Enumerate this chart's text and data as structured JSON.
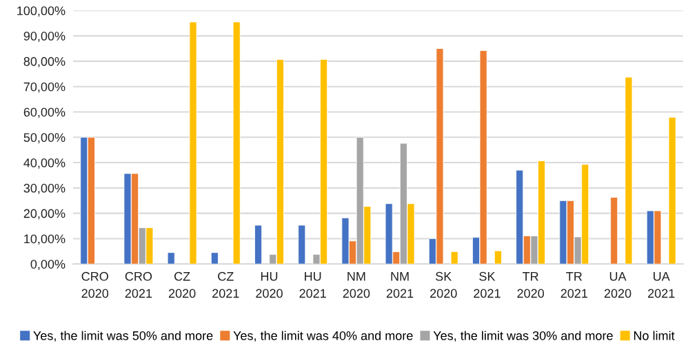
{
  "chart_data": {
    "type": "bar",
    "categories": [
      "CRO\n2020",
      "CRO\n2021",
      "CZ\n2020",
      "CZ\n2021",
      "HU\n2020",
      "HU\n2021",
      "NM\n2020",
      "NM\n2021",
      "SK\n2020",
      "SK\n2021",
      "TR\n2020",
      "TR\n2021",
      "UA\n2020",
      "UA\n2021"
    ],
    "series": [
      {
        "name": "Yes, the limit was 50% and more",
        "color": "#4472c4",
        "values": [
          50,
          35.7,
          4.5,
          4.5,
          15.3,
          15.3,
          18.2,
          23.8,
          10.0,
          10.5,
          37.0,
          25.0,
          null,
          21.0
        ]
      },
      {
        "name": "Yes, the limit was 40% and more",
        "color": "#ed7d31",
        "values": [
          50,
          35.7,
          null,
          null,
          null,
          null,
          9.1,
          4.8,
          85.0,
          84.2,
          11.1,
          25.0,
          26.3,
          21.0
        ]
      },
      {
        "name": "Yes, the limit was 30% and more",
        "color": "#a5a5a5",
        "values": [
          null,
          14.3,
          null,
          null,
          3.8,
          3.8,
          50.0,
          47.6,
          null,
          null,
          11.1,
          10.7,
          null,
          null
        ]
      },
      {
        "name": "No limit",
        "color": "#ffc000",
        "values": [
          null,
          14.3,
          95.5,
          95.5,
          80.7,
          80.7,
          22.7,
          23.8,
          4.9,
          5.2,
          40.7,
          39.3,
          73.7,
          57.9
        ]
      }
    ],
    "ylim": [
      0,
      100
    ],
    "yticks": [
      {
        "value": 0,
        "label": "0,00%"
      },
      {
        "value": 10,
        "label": "10,00%"
      },
      {
        "value": 20,
        "label": "20,00%"
      },
      {
        "value": 30,
        "label": "30,00%"
      },
      {
        "value": 40,
        "label": "40,00%"
      },
      {
        "value": 50,
        "label": "50,00%"
      },
      {
        "value": 60,
        "label": "60,00%"
      },
      {
        "value": 70,
        "label": "70,00%"
      },
      {
        "value": 80,
        "label": "80,00%"
      },
      {
        "value": 90,
        "label": "90,00%"
      },
      {
        "value": 100,
        "label": "100,00%"
      }
    ],
    "grid": "y",
    "legend": "bottom"
  }
}
